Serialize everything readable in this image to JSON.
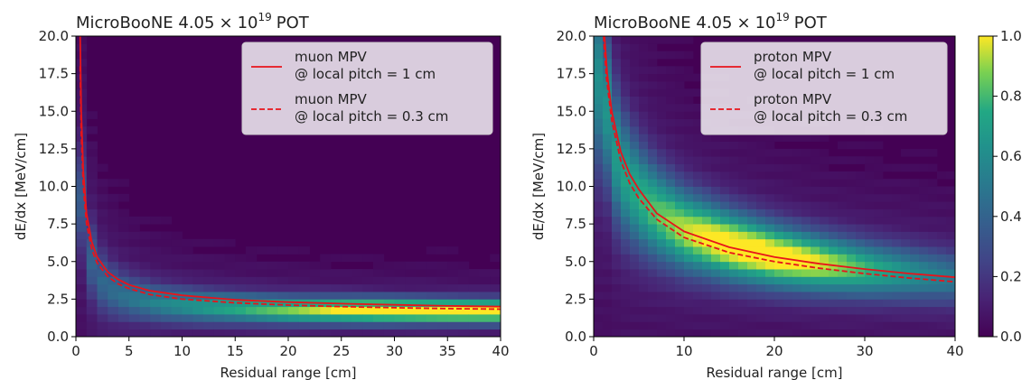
{
  "chart_data": [
    {
      "type": "heatmap",
      "title_main": "MicroBooNE 4.05",
      "title_times": "×",
      "title_base": "10",
      "title_exp": "19",
      "title_tail": "POT",
      "xlabel": "Residual range [cm]",
      "ylabel": "dE/dx [MeV/cm]",
      "xlim": [
        0,
        40
      ],
      "ylim": [
        0,
        20
      ],
      "xticks": [
        "0",
        "5",
        "10",
        "15",
        "20",
        "25",
        "30",
        "35",
        "40"
      ],
      "yticks": [
        "0.0",
        "2.5",
        "5.0",
        "7.5",
        "10.0",
        "12.5",
        "15.0",
        "17.5",
        "20.0"
      ],
      "legend_position": "upper-right",
      "band_center": [
        [
          0.5,
          9.0
        ],
        [
          1,
          6.0
        ],
        [
          2,
          4.0
        ],
        [
          3,
          3.2
        ],
        [
          5,
          2.6
        ],
        [
          8,
          2.2
        ],
        [
          12,
          2.0
        ],
        [
          20,
          1.8
        ],
        [
          30,
          1.75
        ],
        [
          40,
          1.7
        ]
      ],
      "series": [
        {
          "name_line1": "muon MPV",
          "name_line2": "@ local pitch = 1 cm",
          "style": "solid",
          "color": "#e8141b",
          "points": [
            [
              0.4,
              20.0
            ],
            [
              0.5,
              15.0
            ],
            [
              0.7,
              11.0
            ],
            [
              1,
              8.2
            ],
            [
              1.5,
              6.3
            ],
            [
              2,
              5.3
            ],
            [
              3,
              4.3
            ],
            [
              4,
              3.8
            ],
            [
              5,
              3.45
            ],
            [
              7,
              3.05
            ],
            [
              10,
              2.75
            ],
            [
              15,
              2.45
            ],
            [
              20,
              2.3
            ],
            [
              25,
              2.2
            ],
            [
              30,
              2.12
            ],
            [
              35,
              2.05
            ],
            [
              40,
              2.0
            ]
          ]
        },
        {
          "name_line1": "muon MPV",
          "name_line2": "@ local pitch = 0.3 cm",
          "style": "dashed",
          "color": "#e8141b",
          "points": [
            [
              0.4,
              18.0
            ],
            [
              0.5,
              13.5
            ],
            [
              0.7,
              10.0
            ],
            [
              1,
              7.5
            ],
            [
              1.5,
              5.8
            ],
            [
              2,
              4.9
            ],
            [
              3,
              4.0
            ],
            [
              4,
              3.5
            ],
            [
              5,
              3.2
            ],
            [
              7,
              2.8
            ],
            [
              10,
              2.5
            ],
            [
              15,
              2.25
            ],
            [
              20,
              2.1
            ],
            [
              25,
              2.0
            ],
            [
              30,
              1.93
            ],
            [
              35,
              1.87
            ],
            [
              40,
              1.83
            ]
          ]
        }
      ]
    },
    {
      "type": "heatmap",
      "title_main": "MicroBooNE 4.05",
      "title_times": "×",
      "title_base": "10",
      "title_exp": "19",
      "title_tail": "POT",
      "xlabel": "Residual range [cm]",
      "ylabel": "dE/dx [MeV/cm]",
      "xlim": [
        0,
        40
      ],
      "ylim": [
        0,
        20
      ],
      "xticks": [
        "0",
        "10",
        "20",
        "30",
        "40"
      ],
      "yticks": [
        "0.0",
        "2.5",
        "5.0",
        "7.5",
        "10.0",
        "12.5",
        "15.0",
        "17.5",
        "20.0"
      ],
      "legend_position": "upper-right",
      "band_center": [
        [
          1,
          17.0
        ],
        [
          2,
          13.0
        ],
        [
          3,
          11.0
        ],
        [
          5,
          9.3
        ],
        [
          7,
          8.2
        ],
        [
          10,
          7.1
        ],
        [
          15,
          6.1
        ],
        [
          20,
          5.4
        ],
        [
          25,
          4.9
        ],
        [
          30,
          4.5
        ],
        [
          35,
          4.2
        ],
        [
          40,
          3.9
        ]
      ],
      "series": [
        {
          "name_line1": "proton MPV",
          "name_line2": "@ local pitch = 1 cm",
          "style": "solid",
          "color": "#e8141b",
          "points": [
            [
              1.2,
              20.0
            ],
            [
              1.5,
              17.5
            ],
            [
              2,
              15.0
            ],
            [
              3,
              12.3
            ],
            [
              4,
              10.8
            ],
            [
              5,
              9.8
            ],
            [
              7,
              8.2
            ],
            [
              10,
              7.0
            ],
            [
              15,
              5.95
            ],
            [
              20,
              5.3
            ],
            [
              25,
              4.85
            ],
            [
              30,
              4.5
            ],
            [
              35,
              4.2
            ],
            [
              40,
              3.95
            ]
          ]
        },
        {
          "name_line1": "proton MPV",
          "name_line2": "@ local pitch = 0.3 cm",
          "style": "dashed",
          "color": "#e8141b",
          "points": [
            [
              1.1,
              20.0
            ],
            [
              1.4,
              17.3
            ],
            [
              2,
              14.4
            ],
            [
              3,
              11.7
            ],
            [
              4,
              10.2
            ],
            [
              5,
              9.2
            ],
            [
              7,
              7.8
            ],
            [
              10,
              6.6
            ],
            [
              15,
              5.6
            ],
            [
              20,
              5.0
            ],
            [
              25,
              4.55
            ],
            [
              30,
              4.2
            ],
            [
              35,
              3.9
            ],
            [
              40,
              3.65
            ]
          ]
        }
      ]
    }
  ],
  "colorbar": {
    "ticks": [
      "0.0",
      "0.2",
      "0.4",
      "0.6",
      "0.8",
      "1.0"
    ],
    "min": 0,
    "max": 1
  }
}
